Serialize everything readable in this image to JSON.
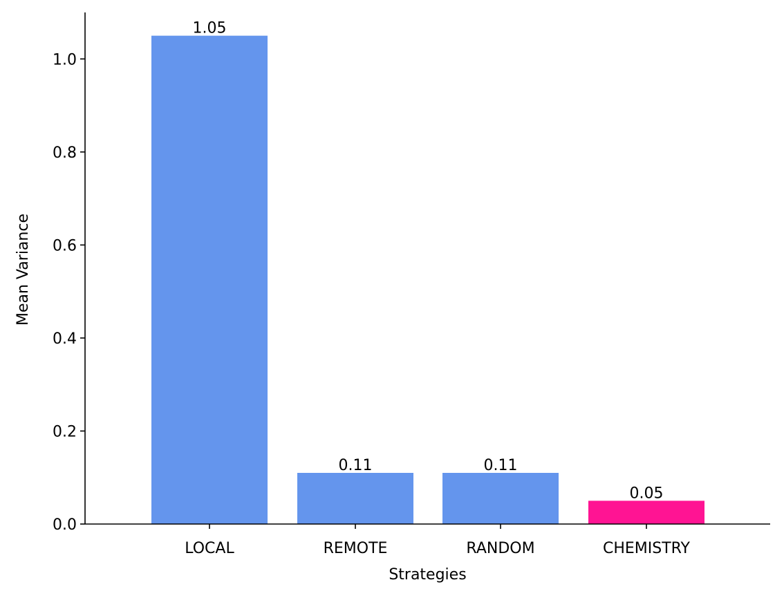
{
  "chart_data": {
    "type": "bar",
    "categories": [
      "LOCAL",
      "REMOTE",
      "RANDOM",
      "CHEMISTRY"
    ],
    "values": [
      1.05,
      0.11,
      0.11,
      0.05
    ],
    "value_labels": [
      "1.05",
      "0.11",
      "0.11",
      "0.05"
    ],
    "colors": [
      "#6495ED",
      "#6495ED",
      "#6495ED",
      "#FF1493"
    ],
    "xlabel": "Strategies",
    "ylabel": "Mean Variance",
    "ylim": [
      0,
      1.1
    ],
    "yticks": [
      0.0,
      0.2,
      0.4,
      0.6,
      0.8,
      1.0
    ],
    "ytick_labels": [
      "0.0",
      "0.2",
      "0.4",
      "0.6",
      "0.8",
      "1.0"
    ],
    "grid": false,
    "legend": "none"
  }
}
